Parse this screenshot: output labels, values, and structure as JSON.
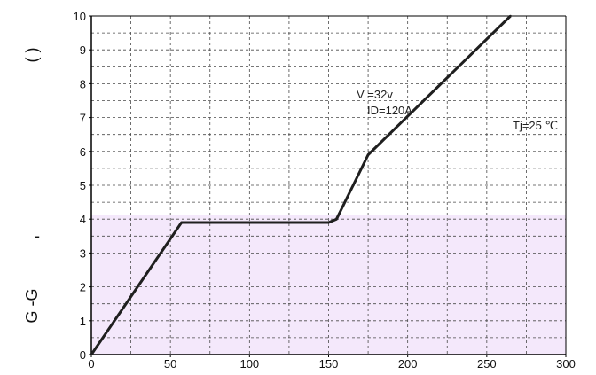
{
  "chart_data": {
    "type": "line",
    "title": "",
    "xlabel": "",
    "ylabel_upper": "( )",
    "ylabel_lower": "G -G",
    "ylabel_mark": "-",
    "xlim": [
      0,
      300
    ],
    "ylim": [
      0,
      10
    ],
    "x_ticks": [
      "0",
      "50",
      "100",
      "150",
      "200",
      "250",
      "300"
    ],
    "y_ticks": [
      "0",
      "1",
      "2",
      "3",
      "4",
      "5",
      "6",
      "7",
      "8",
      "9",
      "10"
    ],
    "grid": true,
    "grid_style": "dashed",
    "series": [
      {
        "color": "#1f1f1f",
        "x": [
          0,
          57,
          150,
          155,
          175,
          265
        ],
        "y": [
          0,
          3.9,
          3.9,
          4.0,
          5.9,
          10.0
        ]
      }
    ],
    "annotations": {
      "vds": "V    =32v",
      "id": "ID=120A",
      "tj": "Tj=25 ℃"
    },
    "colors": {
      "lower_band": "#f4e8fb",
      "upper_band": "#ffffff",
      "axis": "#000000",
      "grid": "#4a4a4a",
      "line": "#1f1f1f"
    }
  }
}
